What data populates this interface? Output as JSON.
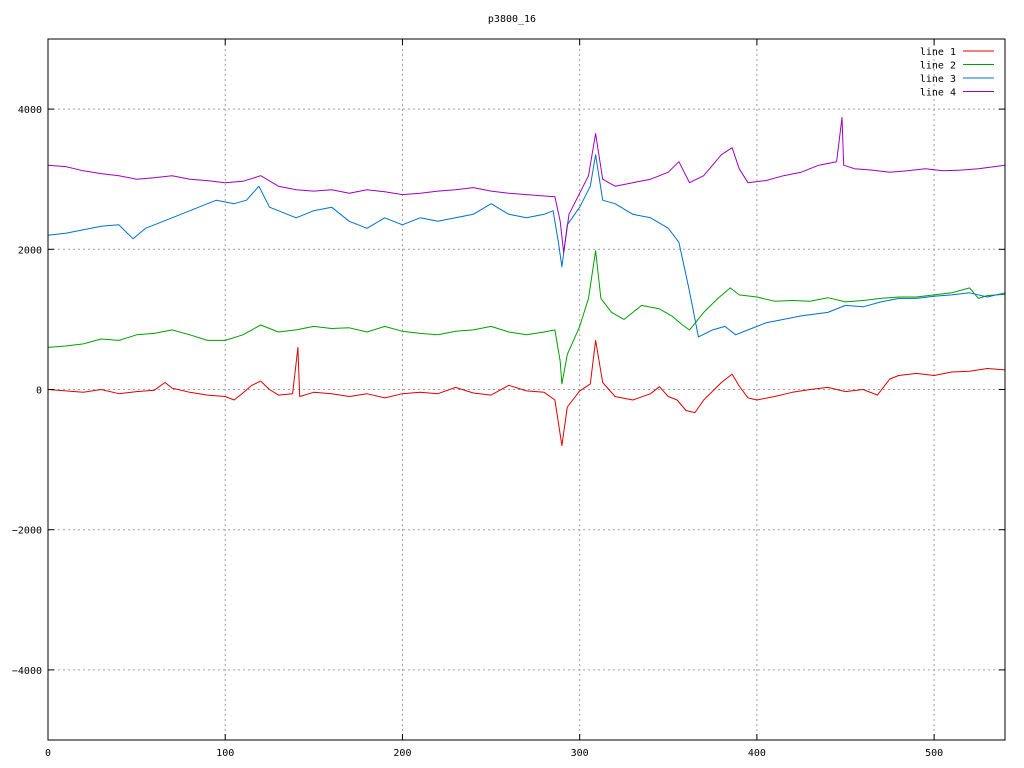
{
  "chart_data": {
    "type": "line",
    "title": "p3800_16",
    "xlabel": "",
    "ylabel": "",
    "xlim": [
      0,
      540
    ],
    "ylim": [
      -5000,
      5000
    ],
    "grid": true,
    "legend_position": "top-right",
    "x_ticks": [
      0,
      100,
      200,
      300,
      400,
      500
    ],
    "y_ticks": [
      -4000,
      -2000,
      0,
      2000,
      4000
    ],
    "x_tick_labels": [
      "0",
      "100",
      "200",
      "300",
      "400",
      "500"
    ],
    "y_tick_labels": [
      "−4000",
      "−2000",
      "0",
      "2000",
      "4000"
    ],
    "series": [
      {
        "name": "line 1",
        "color": "#e00000",
        "points": [
          [
            0,
            0
          ],
          [
            10,
            -20
          ],
          [
            20,
            -40
          ],
          [
            30,
            0
          ],
          [
            40,
            -60
          ],
          [
            50,
            -30
          ],
          [
            60,
            -10
          ],
          [
            66,
            100
          ],
          [
            70,
            20
          ],
          [
            80,
            -40
          ],
          [
            90,
            -80
          ],
          [
            100,
            -100
          ],
          [
            105,
            -150
          ],
          [
            110,
            -50
          ],
          [
            115,
            60
          ],
          [
            120,
            120
          ],
          [
            125,
            0
          ],
          [
            130,
            -80
          ],
          [
            138,
            -60
          ],
          [
            141,
            600
          ],
          [
            142,
            -100
          ],
          [
            150,
            -40
          ],
          [
            160,
            -60
          ],
          [
            170,
            -100
          ],
          [
            180,
            -60
          ],
          [
            190,
            -120
          ],
          [
            200,
            -60
          ],
          [
            210,
            -40
          ],
          [
            220,
            -60
          ],
          [
            230,
            30
          ],
          [
            240,
            -50
          ],
          [
            250,
            -80
          ],
          [
            260,
            60
          ],
          [
            270,
            -20
          ],
          [
            280,
            -40
          ],
          [
            286,
            -150
          ],
          [
            290,
            -800
          ],
          [
            293,
            -250
          ],
          [
            300,
            -20
          ],
          [
            306,
            80
          ],
          [
            309,
            700
          ],
          [
            313,
            100
          ],
          [
            320,
            -100
          ],
          [
            330,
            -150
          ],
          [
            340,
            -60
          ],
          [
            345,
            40
          ],
          [
            350,
            -100
          ],
          [
            355,
            -150
          ],
          [
            360,
            -300
          ],
          [
            365,
            -330
          ],
          [
            370,
            -150
          ],
          [
            380,
            100
          ],
          [
            386,
            220
          ],
          [
            390,
            50
          ],
          [
            395,
            -120
          ],
          [
            400,
            -150
          ],
          [
            410,
            -100
          ],
          [
            420,
            -40
          ],
          [
            430,
            0
          ],
          [
            440,
            30
          ],
          [
            450,
            -30
          ],
          [
            460,
            0
          ],
          [
            468,
            -80
          ],
          [
            475,
            150
          ],
          [
            480,
            200
          ],
          [
            490,
            230
          ],
          [
            500,
            200
          ],
          [
            510,
            250
          ],
          [
            520,
            260
          ],
          [
            530,
            300
          ],
          [
            540,
            280
          ]
        ]
      },
      {
        "name": "line 2",
        "color": "#00a000",
        "points": [
          [
            0,
            600
          ],
          [
            10,
            620
          ],
          [
            20,
            650
          ],
          [
            30,
            720
          ],
          [
            40,
            700
          ],
          [
            50,
            780
          ],
          [
            60,
            800
          ],
          [
            70,
            850
          ],
          [
            80,
            780
          ],
          [
            90,
            700
          ],
          [
            100,
            700
          ],
          [
            110,
            780
          ],
          [
            120,
            920
          ],
          [
            130,
            820
          ],
          [
            140,
            850
          ],
          [
            150,
            900
          ],
          [
            160,
            870
          ],
          [
            170,
            880
          ],
          [
            180,
            820
          ],
          [
            190,
            900
          ],
          [
            200,
            830
          ],
          [
            210,
            800
          ],
          [
            220,
            780
          ],
          [
            230,
            830
          ],
          [
            240,
            850
          ],
          [
            250,
            900
          ],
          [
            260,
            820
          ],
          [
            270,
            780
          ],
          [
            280,
            820
          ],
          [
            286,
            850
          ],
          [
            289,
            400
          ],
          [
            290,
            80
          ],
          [
            293,
            500
          ],
          [
            300,
            900
          ],
          [
            305,
            1300
          ],
          [
            309,
            1980
          ],
          [
            312,
            1300
          ],
          [
            318,
            1100
          ],
          [
            325,
            1000
          ],
          [
            335,
            1200
          ],
          [
            345,
            1150
          ],
          [
            352,
            1050
          ],
          [
            358,
            920
          ],
          [
            362,
            850
          ],
          [
            370,
            1100
          ],
          [
            378,
            1300
          ],
          [
            385,
            1450
          ],
          [
            390,
            1350
          ],
          [
            400,
            1320
          ],
          [
            410,
            1260
          ],
          [
            420,
            1270
          ],
          [
            430,
            1260
          ],
          [
            440,
            1310
          ],
          [
            450,
            1250
          ],
          [
            460,
            1270
          ],
          [
            470,
            1300
          ],
          [
            480,
            1320
          ],
          [
            490,
            1320
          ],
          [
            500,
            1350
          ],
          [
            510,
            1380
          ],
          [
            520,
            1450
          ],
          [
            525,
            1300
          ],
          [
            530,
            1340
          ],
          [
            540,
            1360
          ]
        ]
      },
      {
        "name": "line 3",
        "color": "#0070d0",
        "points": [
          [
            0,
            2200
          ],
          [
            10,
            2230
          ],
          [
            20,
            2280
          ],
          [
            30,
            2330
          ],
          [
            40,
            2350
          ],
          [
            48,
            2150
          ],
          [
            55,
            2300
          ],
          [
            65,
            2400
          ],
          [
            75,
            2500
          ],
          [
            85,
            2600
          ],
          [
            95,
            2700
          ],
          [
            105,
            2650
          ],
          [
            112,
            2700
          ],
          [
            119,
            2900
          ],
          [
            125,
            2600
          ],
          [
            130,
            2550
          ],
          [
            140,
            2450
          ],
          [
            150,
            2550
          ],
          [
            160,
            2600
          ],
          [
            170,
            2400
          ],
          [
            180,
            2300
          ],
          [
            190,
            2450
          ],
          [
            200,
            2350
          ],
          [
            210,
            2450
          ],
          [
            220,
            2400
          ],
          [
            230,
            2450
          ],
          [
            240,
            2500
          ],
          [
            250,
            2650
          ],
          [
            260,
            2500
          ],
          [
            270,
            2450
          ],
          [
            280,
            2500
          ],
          [
            285,
            2550
          ],
          [
            288,
            2100
          ],
          [
            290,
            1750
          ],
          [
            293,
            2350
          ],
          [
            300,
            2600
          ],
          [
            306,
            2900
          ],
          [
            309,
            3350
          ],
          [
            313,
            2700
          ],
          [
            320,
            2650
          ],
          [
            330,
            2500
          ],
          [
            340,
            2450
          ],
          [
            350,
            2300
          ],
          [
            356,
            2100
          ],
          [
            362,
            1400
          ],
          [
            367,
            750
          ],
          [
            375,
            850
          ],
          [
            382,
            900
          ],
          [
            388,
            780
          ],
          [
            395,
            850
          ],
          [
            405,
            950
          ],
          [
            415,
            1000
          ],
          [
            425,
            1050
          ],
          [
            440,
            1100
          ],
          [
            450,
            1200
          ],
          [
            460,
            1180
          ],
          [
            470,
            1250
          ],
          [
            480,
            1300
          ],
          [
            490,
            1300
          ],
          [
            500,
            1330
          ],
          [
            510,
            1350
          ],
          [
            520,
            1380
          ],
          [
            530,
            1320
          ],
          [
            540,
            1380
          ]
        ]
      },
      {
        "name": "line 4",
        "color": "#a000c0",
        "points": [
          [
            0,
            3200
          ],
          [
            10,
            3180
          ],
          [
            20,
            3120
          ],
          [
            30,
            3080
          ],
          [
            40,
            3050
          ],
          [
            50,
            3000
          ],
          [
            60,
            3020
          ],
          [
            70,
            3050
          ],
          [
            80,
            3000
          ],
          [
            90,
            2980
          ],
          [
            100,
            2950
          ],
          [
            110,
            2970
          ],
          [
            120,
            3050
          ],
          [
            130,
            2900
          ],
          [
            140,
            2850
          ],
          [
            150,
            2830
          ],
          [
            160,
            2850
          ],
          [
            170,
            2800
          ],
          [
            180,
            2850
          ],
          [
            190,
            2820
          ],
          [
            200,
            2780
          ],
          [
            210,
            2800
          ],
          [
            220,
            2830
          ],
          [
            230,
            2850
          ],
          [
            240,
            2880
          ],
          [
            250,
            2830
          ],
          [
            260,
            2800
          ],
          [
            270,
            2780
          ],
          [
            280,
            2760
          ],
          [
            286,
            2750
          ],
          [
            289,
            2400
          ],
          [
            291,
            1950
          ],
          [
            294,
            2500
          ],
          [
            300,
            2800
          ],
          [
            305,
            3050
          ],
          [
            309,
            3650
          ],
          [
            313,
            3000
          ],
          [
            320,
            2900
          ],
          [
            330,
            2950
          ],
          [
            340,
            3000
          ],
          [
            350,
            3100
          ],
          [
            356,
            3250
          ],
          [
            362,
            2950
          ],
          [
            370,
            3050
          ],
          [
            380,
            3350
          ],
          [
            386,
            3450
          ],
          [
            390,
            3150
          ],
          [
            395,
            2950
          ],
          [
            405,
            2980
          ],
          [
            415,
            3050
          ],
          [
            425,
            3100
          ],
          [
            435,
            3200
          ],
          [
            445,
            3250
          ],
          [
            448,
            3880
          ],
          [
            449,
            3200
          ],
          [
            455,
            3150
          ],
          [
            465,
            3130
          ],
          [
            475,
            3100
          ],
          [
            485,
            3120
          ],
          [
            495,
            3150
          ],
          [
            505,
            3120
          ],
          [
            515,
            3130
          ],
          [
            525,
            3150
          ],
          [
            540,
            3200
          ]
        ]
      }
    ]
  }
}
